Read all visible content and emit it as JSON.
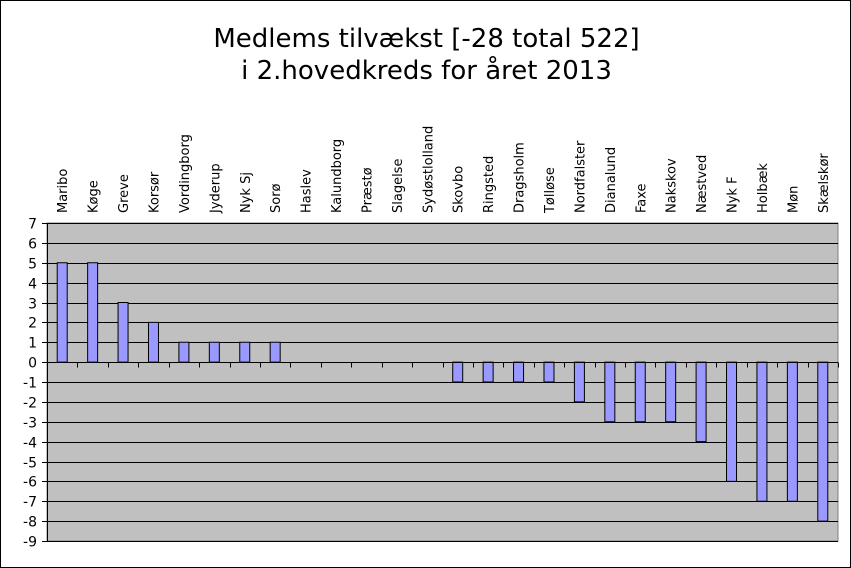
{
  "chart_data": {
    "type": "bar",
    "title_lines": [
      "Medlems tilvækst [-28 total 522]",
      "i 2.hovedkreds for året 2013"
    ],
    "categories": [
      "Maribo",
      "Køge",
      "Greve",
      "Korsør",
      "Vordingborg",
      "Jyderup",
      "Nyk Sj",
      "Sorø",
      "Haslev",
      "Kalundborg",
      "Præstø",
      "Slagelse",
      "Sydøstlolland",
      "Skovbo",
      "Ringsted",
      "Dragsholm",
      "Tølløse",
      "Nordfalster",
      "Dianalund",
      "Faxe",
      "Nakskov",
      "Næstved",
      "Nyk F",
      "Holbæk",
      "Møn",
      "Skælskør"
    ],
    "values": [
      5,
      5,
      3,
      2,
      1,
      1,
      1,
      1,
      0,
      0,
      0,
      0,
      0,
      -1,
      -1,
      -1,
      -1,
      -2,
      -3,
      -3,
      -3,
      -4,
      -6,
      -7,
      -7,
      -8
    ],
    "yticks": [
      7,
      6,
      5,
      4,
      3,
      2,
      1,
      0,
      -1,
      -2,
      -3,
      -4,
      -5,
      -6,
      -7,
      -8,
      -9
    ],
    "ylim": [
      -9,
      7
    ],
    "category_label_position": "top",
    "grid": true,
    "legend": "none",
    "colors": {
      "bar_fill": "#9999ff",
      "bar_stroke": "#000000",
      "plot_background": "#c0c0c0",
      "gridline": "#000000"
    }
  }
}
